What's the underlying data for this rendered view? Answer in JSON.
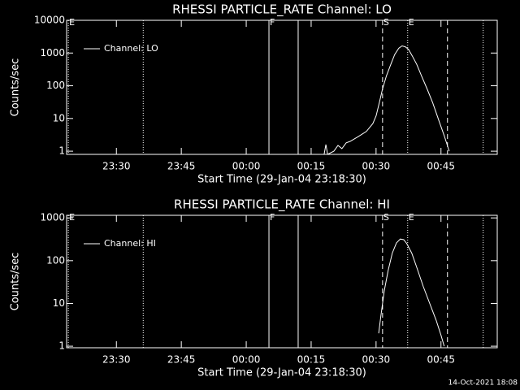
{
  "chart_data": [
    {
      "type": "line",
      "title": "RHESSI PARTICLE_RATE Channel: LO",
      "x_label": "Start Time (29-Jan-04 23:18:30)",
      "y_label": "Counts/sec",
      "xlim": [
        -41.5,
        58
      ],
      "xticks": [
        {
          "value": -30,
          "label": "23:30"
        },
        {
          "value": -15,
          "label": "23:45"
        },
        {
          "value": 0,
          "label": "00:00"
        },
        {
          "value": 15,
          "label": "00:15"
        },
        {
          "value": 30,
          "label": "00:30"
        },
        {
          "value": 45,
          "label": "00:45"
        }
      ],
      "ylim": [
        0.8,
        10000
      ],
      "yticks": [
        1,
        10,
        100,
        1000,
        10000
      ],
      "log_y": true,
      "legend": "upper left",
      "markers": [
        {
          "x": -41.1,
          "style": "dotted",
          "label": "E"
        },
        {
          "x": -23.8,
          "style": "dotted"
        },
        {
          "x": 5.25,
          "style": "solid",
          "label": "F"
        },
        {
          "x": 12,
          "style": "solid"
        },
        {
          "x": 31.5,
          "style": "dashed",
          "label": "S"
        },
        {
          "x": 37.3,
          "style": "dotted",
          "label": "E"
        },
        {
          "x": 46.5,
          "style": "dashed"
        },
        {
          "x": 54.75,
          "style": "dotted"
        }
      ],
      "series": [
        {
          "name": "Channel: LO",
          "color": "#ffffff",
          "x": [
            18,
            18.4,
            18.8,
            20.25,
            21.2,
            22.1,
            23.1,
            24,
            25.9,
            27.75,
            29.25,
            30,
            30.75,
            31.5,
            32.4,
            33.4,
            34.3,
            35.25,
            36,
            36.75,
            37.5,
            38.4,
            39.4,
            40.5,
            41.8,
            43.1,
            44.6,
            45.75,
            46.9
          ],
          "values": [
            0.8,
            1.6,
            0.8,
            1,
            1.5,
            1.2,
            1.8,
            2,
            2.8,
            4,
            7,
            12,
            30,
            80,
            200,
            450,
            900,
            1400,
            1650,
            1550,
            1300,
            800,
            450,
            200,
            80,
            30,
            8,
            3,
            1
          ]
        }
      ]
    },
    {
      "type": "line",
      "title": "RHESSI PARTICLE_RATE Channel: HI",
      "x_label": "Start Time (29-Jan-04 23:18:30)",
      "y_label": "Counts/sec",
      "xlim": [
        -41.5,
        58
      ],
      "xticks": [
        {
          "value": -30,
          "label": "23:30"
        },
        {
          "value": -15,
          "label": "23:45"
        },
        {
          "value": 0,
          "label": "00:00"
        },
        {
          "value": 15,
          "label": "00:15"
        },
        {
          "value": 30,
          "label": "00:30"
        },
        {
          "value": 45,
          "label": "00:45"
        }
      ],
      "ylim": [
        0.92,
        1150
      ],
      "yticks": [
        1,
        10,
        100,
        1000
      ],
      "log_y": true,
      "legend": "upper left",
      "markers": [
        {
          "x": -41.1,
          "style": "dotted",
          "label": "E"
        },
        {
          "x": -23.8,
          "style": "dotted"
        },
        {
          "x": 5.25,
          "style": "solid",
          "label": "F"
        },
        {
          "x": 12,
          "style": "solid"
        },
        {
          "x": 31.5,
          "style": "dashed",
          "label": "S"
        },
        {
          "x": 37.3,
          "style": "dotted",
          "label": "E"
        },
        {
          "x": 46.5,
          "style": "dashed"
        },
        {
          "x": 54.75,
          "style": "dotted"
        }
      ],
      "series": [
        {
          "name": "Channel: HI",
          "color": "#ffffff",
          "x": [
            30.6,
            31.1,
            31.9,
            32.8,
            33.75,
            34.7,
            35.6,
            36.4,
            37.1,
            38.25,
            39.4,
            40.9,
            42.4,
            43.9,
            45,
            45.75
          ],
          "values": [
            2,
            5,
            20,
            60,
            150,
            260,
            320,
            310,
            250,
            150,
            70,
            25,
            10,
            4,
            1.8,
            1
          ]
        }
      ]
    }
  ],
  "footer": "14-Oct-2021 18:08"
}
